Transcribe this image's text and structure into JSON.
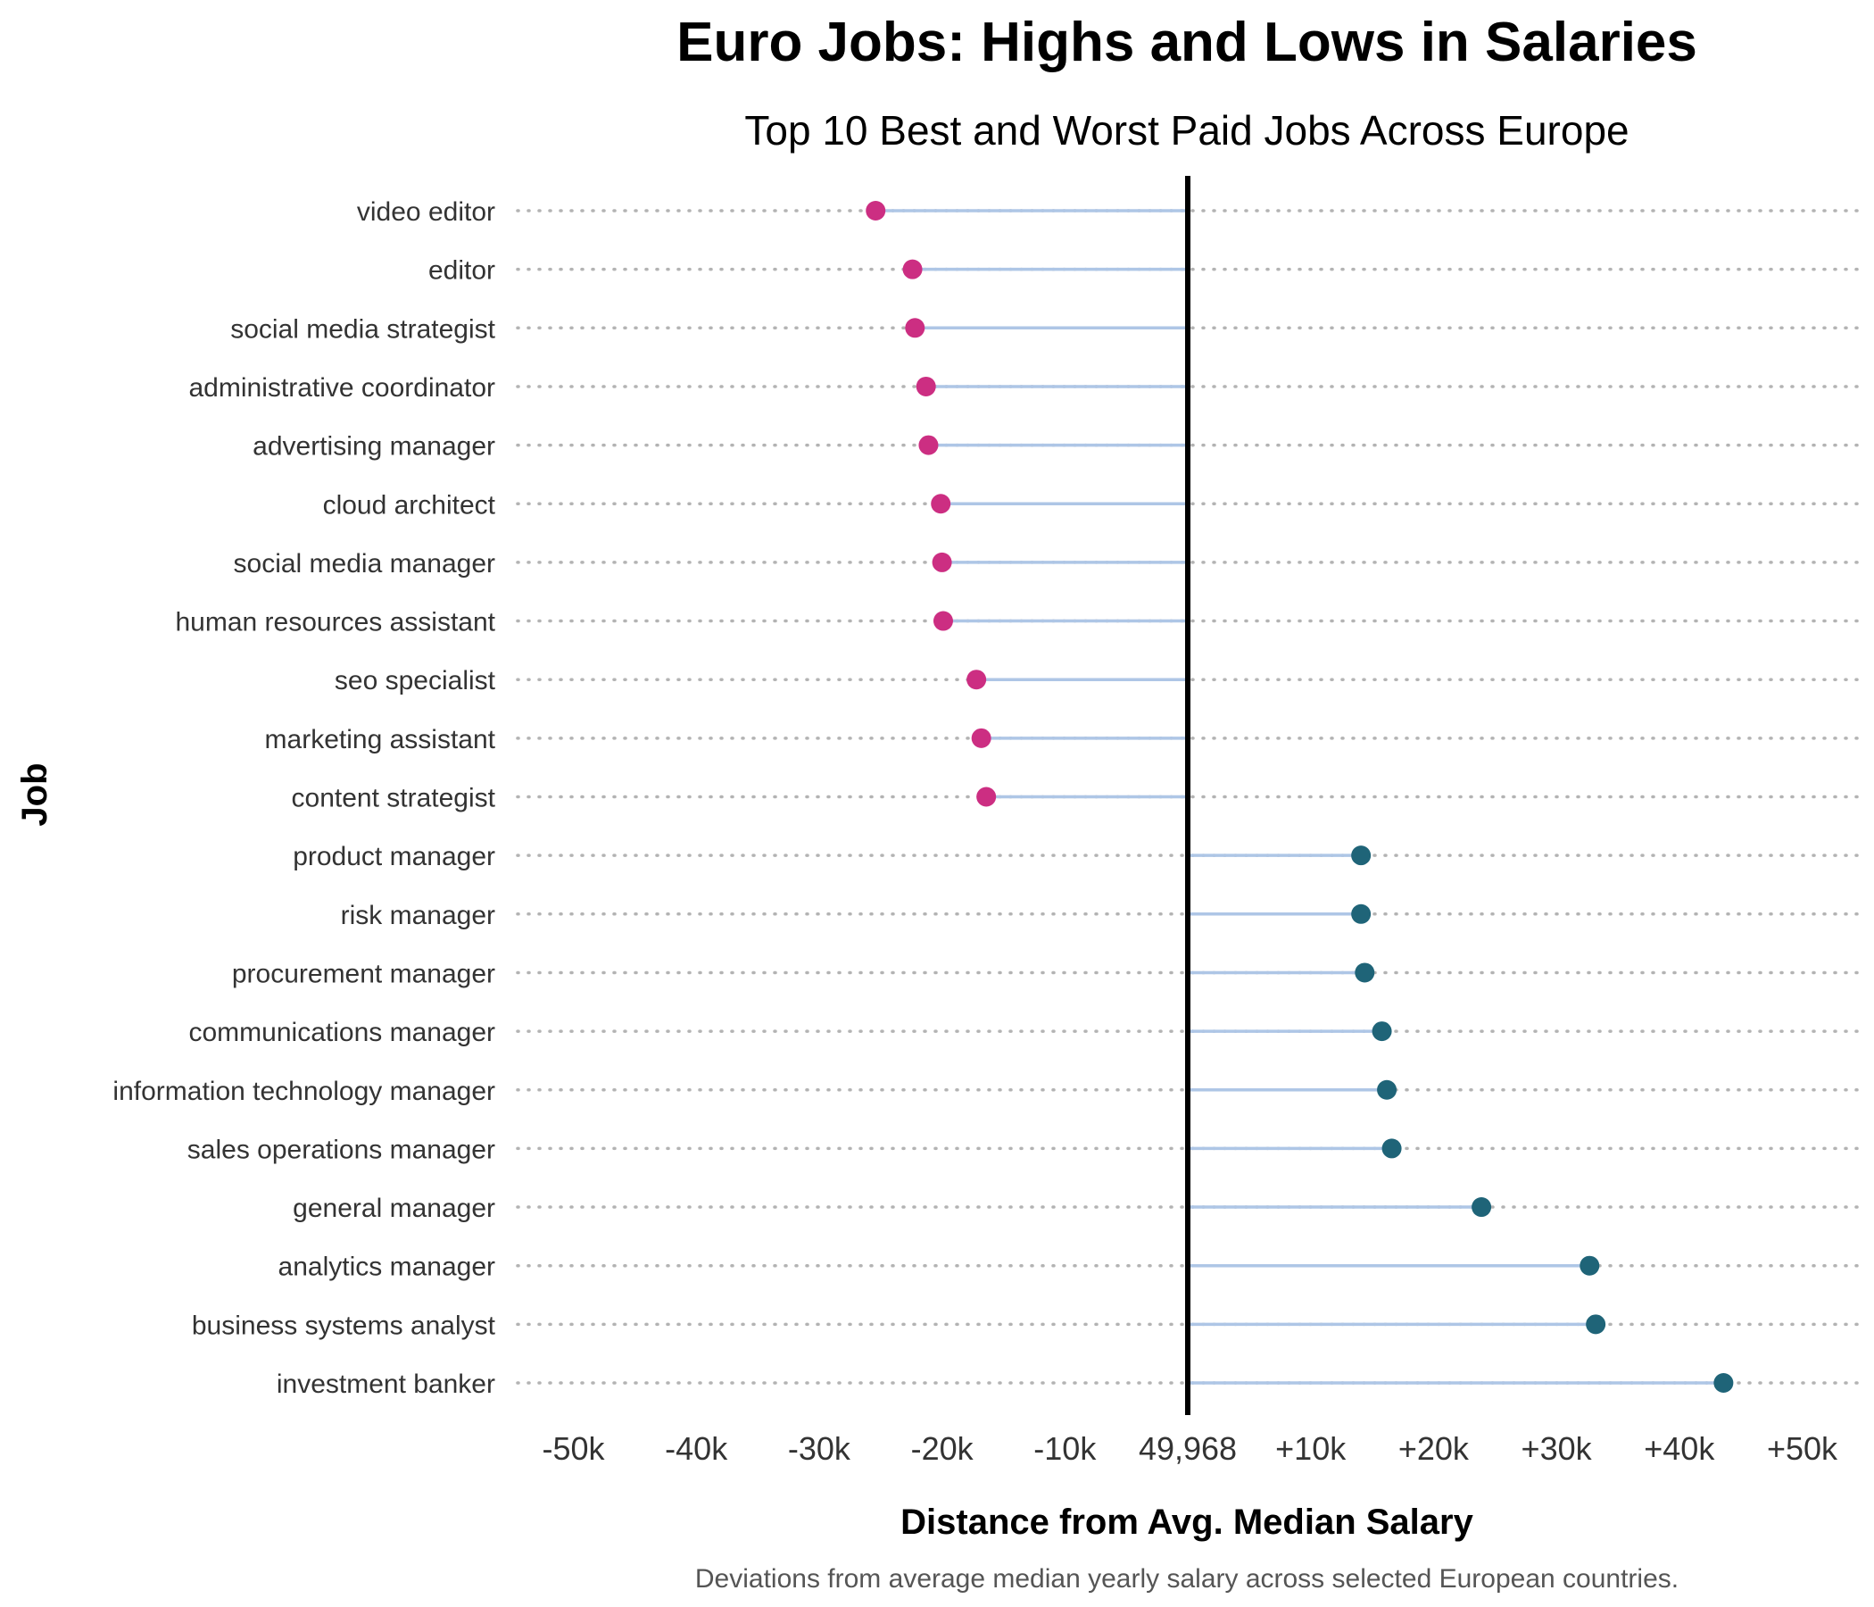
{
  "chart_data": {
    "type": "lollipop",
    "title": "Euro Jobs: Highs and Lows in Salaries",
    "subtitle": "Top 10 Best and Worst Paid Jobs Across Europe",
    "xlabel": "Distance from Avg. Median Salary",
    "ylabel": "Job",
    "caption": "Deviations from average median yearly salary across selected European countries.",
    "baseline_value": 49968,
    "baseline_label": "49,968",
    "xlim": [
      -50000,
      50000
    ],
    "x_ticks": [
      -50000,
      -40000,
      -30000,
      -20000,
      -10000,
      0,
      10000,
      20000,
      30000,
      40000,
      50000
    ],
    "x_tick_labels": [
      "-50k",
      "-40k",
      "-30k",
      "-20k",
      "-10k",
      "49,968",
      "+10k",
      "+20k",
      "+30k",
      "+40k",
      "+50k"
    ],
    "grid": "horizontal dotted",
    "colors": {
      "below": "#cc2e82",
      "above": "#1f6478",
      "stem": "#aec6e6",
      "grid": "#b3b3b3",
      "baseline": "#000000"
    },
    "categories": [
      "video editor",
      "editor",
      "social media strategist",
      "administrative coordinator",
      "advertising manager",
      "cloud architect",
      "social media manager",
      "human resources assistant",
      "seo specialist",
      "marketing assistant",
      "content strategist",
      "product manager",
      "risk manager",
      "procurement manager",
      "communications manager",
      "information technology manager",
      "sales operations manager",
      "general manager",
      "analytics manager",
      "business systems analyst",
      "investment banker"
    ],
    "values": [
      -25400,
      -22400,
      -22200,
      -21300,
      -21100,
      -20100,
      -20000,
      -19900,
      -17200,
      -16800,
      -16400,
      14100,
      14100,
      14400,
      15800,
      16200,
      16600,
      23900,
      32700,
      33200,
      43600
    ]
  }
}
